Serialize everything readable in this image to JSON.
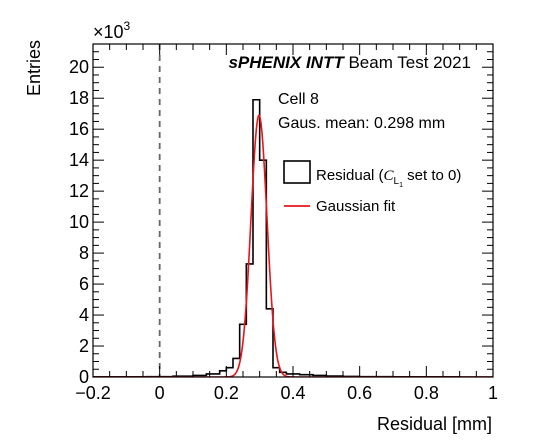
{
  "chart_data": {
    "type": "histogram",
    "experiment": "sPHENIX INTT",
    "experiment_suffix": " Beam Test 2021",
    "annotation_cell": "Cell 8",
    "annotation_mean": "Gaus. mean: 0.298 mm",
    "xlabel": "Residual [mm]",
    "ylabel": "Entries",
    "y_multiplier": "×10",
    "y_multiplier_exp": "3",
    "xlim": [
      -0.2,
      1.0
    ],
    "ylim": [
      0,
      21.5
    ],
    "x_ticks": [
      -0.2,
      0,
      0.2,
      0.4,
      0.6,
      0.8,
      1
    ],
    "x_tick_labels": [
      "−0.2",
      "0",
      "0.2",
      "0.4",
      "0.6",
      "0.8",
      "1"
    ],
    "y_ticks": [
      0,
      2,
      4,
      6,
      8,
      10,
      12,
      14,
      16,
      18,
      20
    ],
    "y_tick_labels": [
      "0",
      "2",
      "4",
      "6",
      "8",
      "10",
      "12",
      "14",
      "16",
      "18",
      "20"
    ],
    "reference_line_x": 0,
    "legend": {
      "residual_label_prefix": "Residual (",
      "residual_label_var": "C",
      "residual_label_sub": "L",
      "residual_label_subsub": "1",
      "residual_label_suffix": " set to 0)",
      "fit_label": "Gaussian fit"
    },
    "series": [
      {
        "name": "Residual",
        "kind": "step",
        "color": "#000000",
        "bin_edges": [
          -0.2,
          -0.12,
          -0.04,
          0.04,
          0.1,
          0.14,
          0.18,
          0.2,
          0.22,
          0.24,
          0.26,
          0.28,
          0.3,
          0.32,
          0.34,
          0.36,
          0.38,
          0.42,
          0.46,
          0.5,
          0.55,
          0.6,
          0.7,
          0.8,
          0.9,
          1.0
        ],
        "counts": [
          0.01,
          0.01,
          0.02,
          0.05,
          0.1,
          0.2,
          0.4,
          0.6,
          1.2,
          3.4,
          7.3,
          17.9,
          14.0,
          4.4,
          0.6,
          0.3,
          0.2,
          0.15,
          0.1,
          0.06,
          0.04,
          0.02,
          0.01,
          0.01,
          0.0
        ]
      },
      {
        "name": "Gaussian fit",
        "kind": "gaussian",
        "color": "#e8141b",
        "mean": 0.298,
        "sigma": 0.024,
        "amplitude": 16.9
      }
    ]
  }
}
